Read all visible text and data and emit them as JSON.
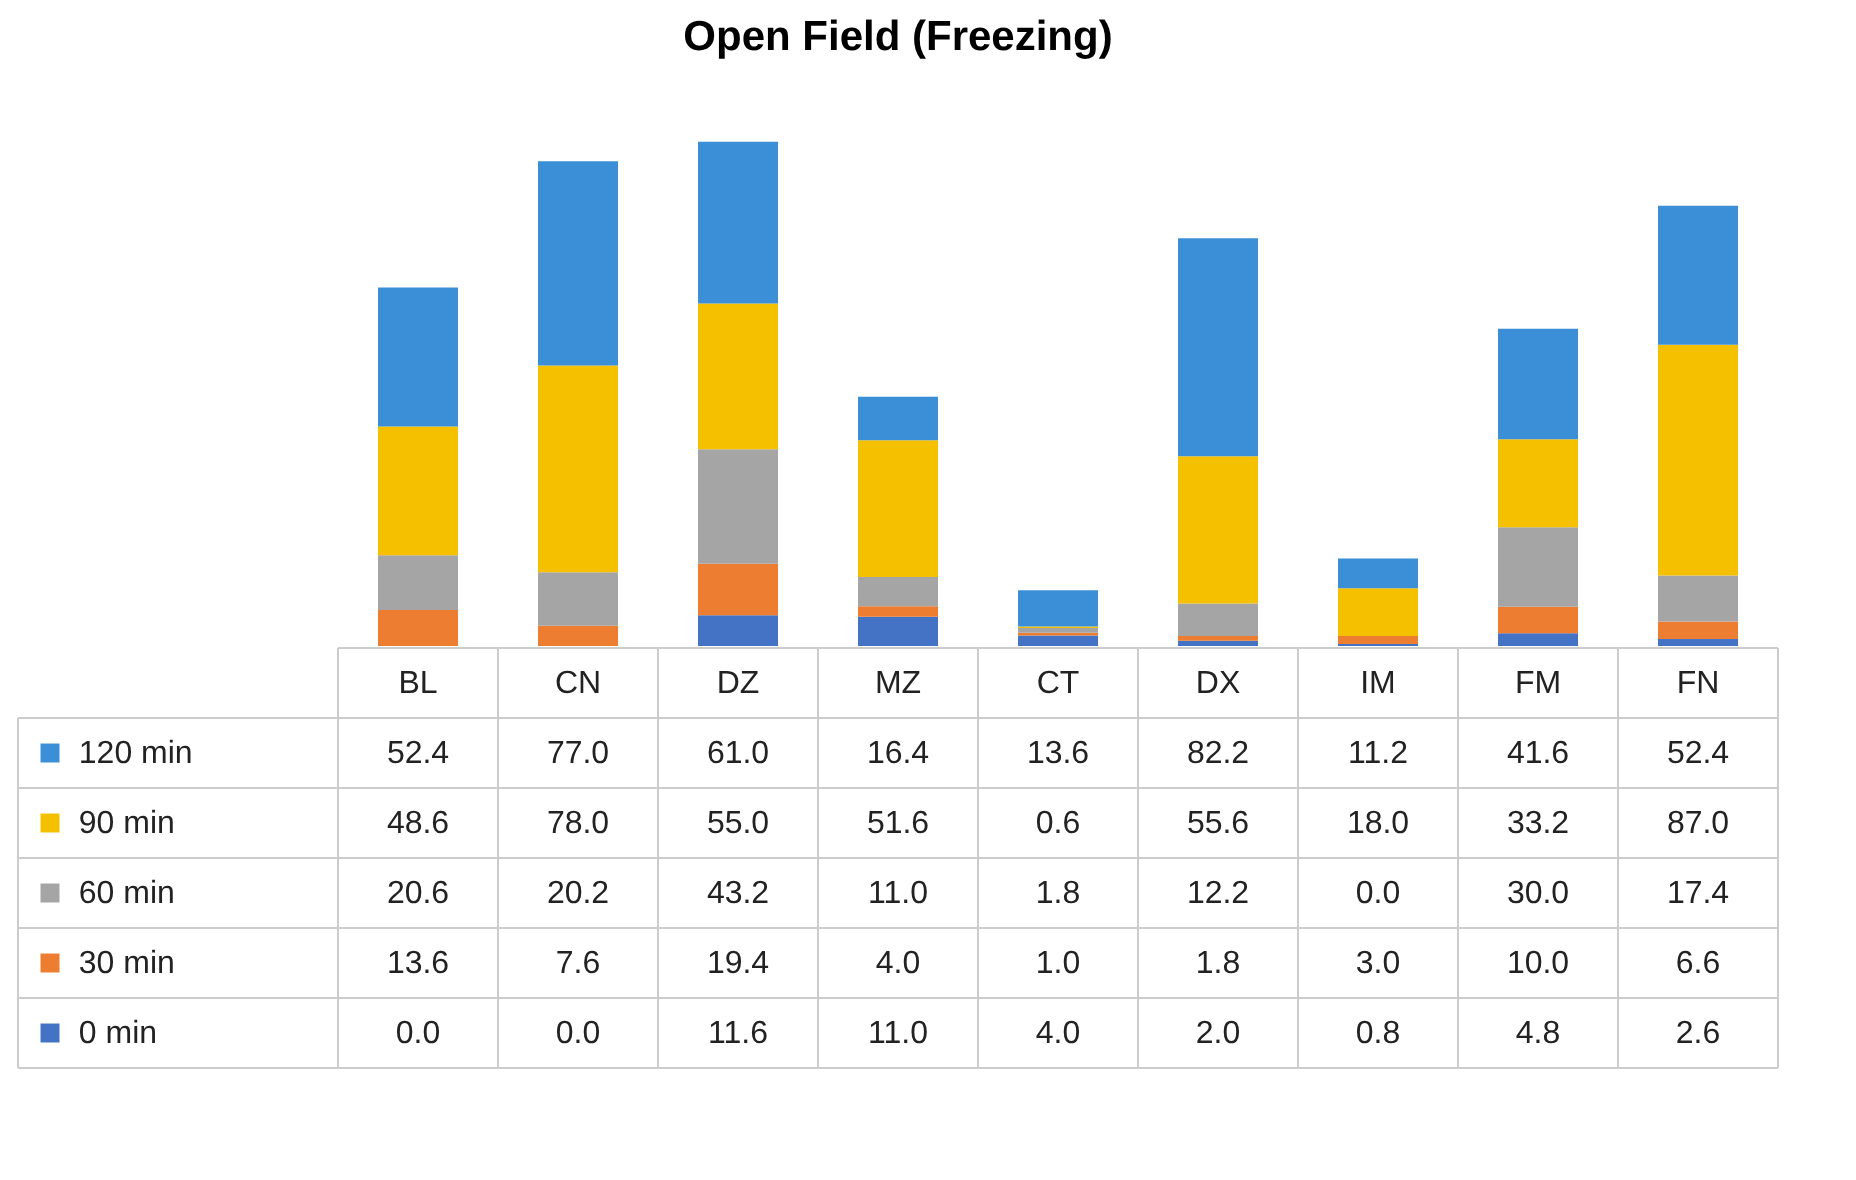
{
  "chart_data": {
    "type": "bar",
    "title": "Open Field  (Freezing)",
    "stacked": true,
    "legend": "bottom left",
    "categories": [
      "BL",
      "CN",
      "DZ",
      "MZ",
      "CT",
      "DX",
      "IM",
      "FM",
      "FN"
    ],
    "series": [
      {
        "name": "0 min",
        "color": "#4472c4",
        "values": [
          0.0,
          0.0,
          11.6,
          11.0,
          4.0,
          2.0,
          0.8,
          4.8,
          2.6
        ],
        "value_labels": [
          "0.0",
          "0.0",
          "11.6",
          "11.0",
          "4.0",
          "2.0",
          "0.8",
          "4.8",
          "2.6"
        ]
      },
      {
        "name": "30 min",
        "color": "#ed7d31",
        "values": [
          13.6,
          7.6,
          19.4,
          4.0,
          1.0,
          1.8,
          3.0,
          10.0,
          6.6
        ],
        "value_labels": [
          "13.6",
          "7.6",
          "19.4",
          "4.0",
          "1.0",
          "1.8",
          "3.0",
          "10.0",
          "6.6"
        ]
      },
      {
        "name": "60 min",
        "color": "#a5a5a5",
        "values": [
          20.6,
          20.2,
          43.2,
          11.0,
          1.8,
          12.2,
          0.0,
          30.0,
          17.4
        ],
        "value_labels": [
          "20.6",
          "20.2",
          "43.2",
          "11.0",
          "1.8",
          "12.2",
          "0.0",
          "30.0",
          "17.4"
        ]
      },
      {
        "name": "90 min",
        "color": "#f5c000",
        "values": [
          48.6,
          78.0,
          55.0,
          51.6,
          0.6,
          55.6,
          18.0,
          33.2,
          87.0
        ],
        "value_labels": [
          "48.6",
          "78.0",
          "55.0",
          "51.6",
          "0.6",
          "55.6",
          "18.0",
          "33.2",
          "87.0"
        ]
      },
      {
        "name": "120 min",
        "color": "#3a8fd6",
        "values": [
          52.4,
          77.0,
          61.0,
          16.4,
          13.6,
          82.2,
          11.2,
          41.6,
          52.4
        ],
        "value_labels": [
          "52.4",
          "77.0",
          "61.0",
          "16.4",
          "13.6",
          "82.2",
          "11.2",
          "41.6",
          "52.4"
        ]
      }
    ]
  }
}
